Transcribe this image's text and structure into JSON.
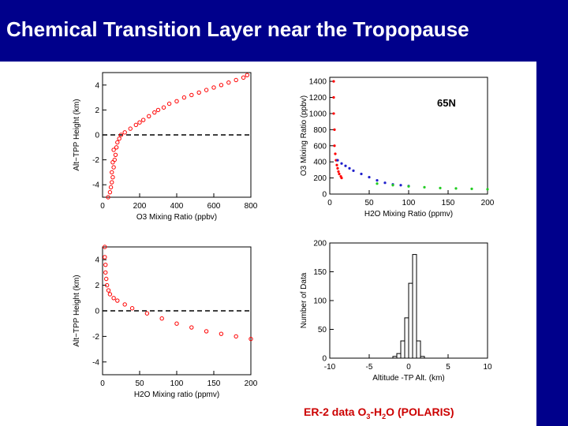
{
  "slide": {
    "title": "Chemical Transition Layer near the Tropopause",
    "footer_prefix": "ER-2 data O",
    "footer_sub1": "3",
    "footer_mid": "-H",
    "footer_sub2": "2",
    "footer_suffix": "O (POLARIS)"
  },
  "colors": {
    "background": "#00008b",
    "panel": "#ffffff",
    "red": "#ff0000",
    "blue": "#2020cc",
    "green": "#22cc22",
    "footer_text": "#cc0000"
  },
  "chart_data": [
    {
      "id": "o3-vs-height",
      "type": "scatter",
      "xlabel": "O3 Mixing Ratio (ppbv)",
      "ylabel": "Alt−TPP Height (km)",
      "xlim": [
        0,
        800
      ],
      "ylim": [
        -5,
        5
      ],
      "xticks": [
        0,
        200,
        400,
        600,
        800
      ],
      "yticks": [
        -4,
        -2,
        0,
        2,
        4
      ],
      "reference_line": {
        "y": 0,
        "style": "dashed"
      },
      "marker": "open-circle",
      "series": [
        {
          "color": "#ff0000",
          "points": [
            [
              30,
              -5
            ],
            [
              40,
              -4.6
            ],
            [
              45,
              -4.2
            ],
            [
              50,
              -3.8
            ],
            [
              55,
              -3.4
            ],
            [
              50,
              -3.0
            ],
            [
              60,
              -2.6
            ],
            [
              55,
              -2.2
            ],
            [
              65,
              -2.0
            ],
            [
              70,
              -1.6
            ],
            [
              60,
              -1.2
            ],
            [
              75,
              -1.0
            ],
            [
              80,
              -0.6
            ],
            [
              90,
              -0.3
            ],
            [
              100,
              0.0
            ],
            [
              120,
              0.2
            ],
            [
              150,
              0.5
            ],
            [
              180,
              0.8
            ],
            [
              200,
              1.0
            ],
            [
              220,
              1.2
            ],
            [
              250,
              1.5
            ],
            [
              280,
              1.8
            ],
            [
              300,
              2.0
            ],
            [
              330,
              2.2
            ],
            [
              360,
              2.5
            ],
            [
              400,
              2.7
            ],
            [
              440,
              3.0
            ],
            [
              480,
              3.2
            ],
            [
              520,
              3.4
            ],
            [
              560,
              3.6
            ],
            [
              600,
              3.8
            ],
            [
              640,
              4.0
            ],
            [
              680,
              4.2
            ],
            [
              720,
              4.4
            ],
            [
              760,
              4.6
            ],
            [
              780,
              4.8
            ]
          ]
        }
      ]
    },
    {
      "id": "h2o-o3-65n",
      "type": "scatter",
      "xlabel": "H2O Mixing Ratio (ppmv)",
      "ylabel": "O3 Mixing Ratio (ppbv)",
      "xlim": [
        0,
        200
      ],
      "ylim": [
        0,
        1450
      ],
      "xticks": [
        0,
        50,
        100,
        150,
        200
      ],
      "yticks": [
        0,
        200,
        400,
        600,
        800,
        1000,
        1200,
        1400
      ],
      "annotation": "65N",
      "series": [
        {
          "color": "#ff0000",
          "points": [
            [
              5,
              1400
            ],
            [
              5,
              1200
            ],
            [
              5,
              1000
            ],
            [
              6,
              800
            ],
            [
              6,
              600
            ],
            [
              7,
              500
            ],
            [
              8,
              420
            ],
            [
              9,
              360
            ],
            [
              10,
              320
            ],
            [
              11,
              280
            ],
            [
              12,
              250
            ],
            [
              14,
              220
            ],
            [
              15,
              200
            ]
          ]
        },
        {
          "color": "#2020cc",
          "points": [
            [
              10,
              420
            ],
            [
              15,
              380
            ],
            [
              20,
              350
            ],
            [
              25,
              320
            ],
            [
              30,
              290
            ],
            [
              40,
              250
            ],
            [
              50,
              210
            ],
            [
              60,
              170
            ],
            [
              70,
              140
            ],
            [
              80,
              120
            ],
            [
              90,
              110
            ],
            [
              100,
              100
            ]
          ]
        },
        {
          "color": "#22cc22",
          "points": [
            [
              60,
              130
            ],
            [
              80,
              110
            ],
            [
              100,
              95
            ],
            [
              120,
              85
            ],
            [
              140,
              75
            ],
            [
              160,
              70
            ],
            [
              180,
              65
            ],
            [
              200,
              60
            ]
          ]
        }
      ]
    },
    {
      "id": "h2o-vs-height",
      "type": "scatter",
      "xlabel": "H2O Mixing ratio (ppmv)",
      "ylabel": "Alt−TPP Height (km)",
      "xlim": [
        0,
        200
      ],
      "ylim": [
        -5,
        5
      ],
      "xticks": [
        0,
        50,
        100,
        150,
        200
      ],
      "yticks": [
        -4,
        -2,
        0,
        2,
        4
      ],
      "reference_line": {
        "y": 0,
        "style": "dashed"
      },
      "marker": "open-circle",
      "series": [
        {
          "color": "#ff0000",
          "points": [
            [
              3,
              5
            ],
            [
              3,
              4.2
            ],
            [
              4,
              3.6
            ],
            [
              4,
              3.0
            ],
            [
              5,
              2.5
            ],
            [
              6,
              2.0
            ],
            [
              8,
              1.6
            ],
            [
              10,
              1.3
            ],
            [
              15,
              1.0
            ],
            [
              20,
              0.8
            ],
            [
              30,
              0.5
            ],
            [
              40,
              0.2
            ],
            [
              60,
              -0.2
            ],
            [
              80,
              -0.6
            ],
            [
              100,
              -1.0
            ],
            [
              120,
              -1.3
            ],
            [
              140,
              -1.6
            ],
            [
              160,
              -1.8
            ],
            [
              180,
              -2.0
            ],
            [
              200,
              -2.2
            ]
          ]
        }
      ]
    },
    {
      "id": "altitude-histogram",
      "type": "bar",
      "xlabel": "Altitude -TP Alt. (km)",
      "ylabel": "Number of Data",
      "xlim": [
        -10,
        10
      ],
      "ylim": [
        0,
        200
      ],
      "xticks": [
        -10,
        -5,
        0,
        5,
        10
      ],
      "yticks": [
        0,
        50,
        100,
        150,
        200
      ],
      "bins": [
        {
          "x0": -2.0,
          "x1": -1.5,
          "value": 3
        },
        {
          "x0": -1.5,
          "x1": -1.0,
          "value": 8
        },
        {
          "x0": -1.0,
          "x1": -0.5,
          "value": 30
        },
        {
          "x0": -0.5,
          "x1": 0.0,
          "value": 70
        },
        {
          "x0": 0.0,
          "x1": 0.5,
          "value": 130
        },
        {
          "x0": 0.5,
          "x1": 1.0,
          "value": 180
        },
        {
          "x0": 1.0,
          "x1": 1.5,
          "value": 30
        },
        {
          "x0": 1.5,
          "x1": 2.0,
          "value": 3
        }
      ]
    }
  ]
}
